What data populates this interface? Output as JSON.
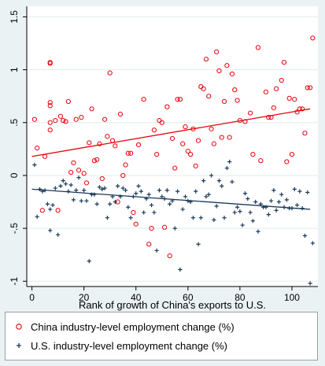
{
  "chart_data": {
    "type": "scatter",
    "title": "",
    "xlabel": "Rank of growth of China's exports to U.S.",
    "ylabel": "",
    "xlim": [
      -2,
      110
    ],
    "ylim": [
      -1.05,
      1.6
    ],
    "xticks": [
      0,
      20,
      40,
      60,
      80,
      100
    ],
    "yticks": [
      -1,
      -0.5,
      0,
      0.5,
      1,
      1.5
    ],
    "xtick_labels": [
      "0",
      "20",
      "40",
      "60",
      "80",
      "100"
    ],
    "ytick_labels": [
      "-1",
      "-.5",
      "0",
      ".5",
      "1",
      "1.5"
    ],
    "grid": true,
    "legend_position": "bottom",
    "series": [
      {
        "name": "China industry-level employment change (%)",
        "color": "#e8000b",
        "marker": "circle",
        "trend": {
          "x0": 0,
          "y0": 0.18,
          "x1": 107,
          "y1": 0.63
        },
        "points": [
          [
            1,
            0.53
          ],
          [
            2,
            0.26
          ],
          [
            4,
            -0.33
          ],
          [
            5,
            0.18
          ],
          [
            7,
            0.5
          ],
          [
            7,
            0.43
          ],
          [
            7,
            0.66
          ],
          [
            7,
            0.69
          ],
          [
            7,
            1.06
          ],
          [
            7,
            1.07
          ],
          [
            9,
            0.52
          ],
          [
            10,
            -0.33
          ],
          [
            11,
            0.56
          ],
          [
            12,
            0.52
          ],
          [
            13,
            0.51
          ],
          [
            14,
            0.7
          ],
          [
            15,
            0.03
          ],
          [
            16,
            0.12
          ],
          [
            17,
            0.53
          ],
          [
            18,
            0.05
          ],
          [
            19,
            0.55
          ],
          [
            20,
            0.02
          ],
          [
            21,
            -0.07
          ],
          [
            22,
            0.31
          ],
          [
            23,
            0.63
          ],
          [
            24,
            0.14
          ],
          [
            25,
            0.15
          ],
          [
            26,
            0.3
          ],
          [
            27,
            -0.03
          ],
          [
            28,
            0.53
          ],
          [
            29,
            0.37
          ],
          [
            30,
            0.97
          ],
          [
            31,
            0.33
          ],
          [
            32,
            0.28
          ],
          [
            33,
            -0.25
          ],
          [
            34,
            0.58
          ],
          [
            35,
            0.0
          ],
          [
            36,
            0.1
          ],
          [
            37,
            0.21
          ],
          [
            38,
            0.21
          ],
          [
            39,
            -0.35
          ],
          [
            40,
            -0.46
          ],
          [
            41,
            0.29
          ],
          [
            43,
            0.72
          ],
          [
            45,
            -0.65
          ],
          [
            46,
            -0.5
          ],
          [
            47,
            0.43
          ],
          [
            48,
            0.2
          ],
          [
            49,
            0.52
          ],
          [
            50,
            0.5
          ],
          [
            51,
            -0.49
          ],
          [
            52,
            0.65
          ],
          [
            53,
            -0.76
          ],
          [
            54,
            0.35
          ],
          [
            55,
            0.07
          ],
          [
            56,
            0.72
          ],
          [
            57,
            0.72
          ],
          [
            58,
            0.3
          ],
          [
            59,
            0.46
          ],
          [
            60,
            0.23
          ],
          [
            61,
            0.2
          ],
          [
            62,
            0.44
          ],
          [
            63,
            0.09
          ],
          [
            64,
            0.33
          ],
          [
            65,
            0.84
          ],
          [
            66,
            0.82
          ],
          [
            67,
            1.1
          ],
          [
            68,
            0.75
          ],
          [
            69,
            0.44
          ],
          [
            70,
            0.3
          ],
          [
            71,
            1.17
          ],
          [
            72,
            0.99
          ],
          [
            73,
            0.36
          ],
          [
            74,
            0.7
          ],
          [
            75,
            1.04
          ],
          [
            76,
            0.36
          ],
          [
            77,
            0.96
          ],
          [
            78,
            0.81
          ],
          [
            79,
            0.71
          ],
          [
            80,
            0.52
          ],
          [
            82,
            0.51
          ],
          [
            84,
            0.59
          ],
          [
            85,
            0.2
          ],
          [
            87,
            1.21
          ],
          [
            88,
            0.14
          ],
          [
            90,
            0.79
          ],
          [
            91,
            0.55
          ],
          [
            92,
            0.55
          ],
          [
            93,
            0.64
          ],
          [
            94,
            0.82
          ],
          [
            96,
            0.9
          ],
          [
            97,
            1.07
          ],
          [
            98,
            0.13
          ],
          [
            99,
            0.73
          ],
          [
            100,
            0.2
          ],
          [
            101,
            0.72
          ],
          [
            102,
            0.6
          ],
          [
            103,
            0.63
          ],
          [
            104,
            0.63
          ],
          [
            105,
            0.4
          ],
          [
            106,
            0.83
          ],
          [
            107,
            0.83
          ],
          [
            108,
            1.3
          ]
        ]
      },
      {
        "name": "U.S. industry-level employment change (%)",
        "color": "#1a3a5a",
        "marker": "plus",
        "trend": {
          "x0": 0,
          "y0": -0.13,
          "x1": 107,
          "y1": -0.32
        },
        "points": [
          [
            1,
            0.1
          ],
          [
            2,
            -0.39
          ],
          [
            3,
            -0.13
          ],
          [
            4,
            -0.15
          ],
          [
            5,
            -0.14
          ],
          [
            6,
            -0.27
          ],
          [
            7,
            -0.32
          ],
          [
            7,
            -0.52
          ],
          [
            8,
            -0.28
          ],
          [
            9,
            -0.12
          ],
          [
            10,
            -0.56
          ],
          [
            11,
            -0.1
          ],
          [
            12,
            -0.05
          ],
          [
            13,
            -0.08
          ],
          [
            14,
            -0.15
          ],
          [
            15,
            -0.09
          ],
          [
            16,
            -0.23
          ],
          [
            17,
            -0.14
          ],
          [
            18,
            -0.02
          ],
          [
            19,
            -0.24
          ],
          [
            20,
            -0.14
          ],
          [
            21,
            -0.24
          ],
          [
            22,
            -0.81
          ],
          [
            23,
            -0.18
          ],
          [
            24,
            -0.18
          ],
          [
            25,
            -0.27
          ],
          [
            26,
            -0.11
          ],
          [
            27,
            -0.13
          ],
          [
            28,
            -0.12
          ],
          [
            29,
            -0.4
          ],
          [
            30,
            -0.27
          ],
          [
            31,
            -0.2
          ],
          [
            32,
            -0.25
          ],
          [
            33,
            -0.1
          ],
          [
            34,
            -0.2
          ],
          [
            35,
            -0.12
          ],
          [
            36,
            -0.14
          ],
          [
            37,
            -0.3
          ],
          [
            38,
            -0.4
          ],
          [
            39,
            -0.2
          ],
          [
            40,
            -0.17
          ],
          [
            41,
            -0.1
          ],
          [
            42,
            -0.15
          ],
          [
            43,
            -0.35
          ],
          [
            44,
            -0.22
          ],
          [
            45,
            -0.18
          ],
          [
            46,
            -0.28
          ],
          [
            47,
            -0.35
          ],
          [
            48,
            -0.71
          ],
          [
            49,
            -0.14
          ],
          [
            50,
            -0.2
          ],
          [
            51,
            -0.22
          ],
          [
            52,
            -0.14
          ],
          [
            53,
            -0.27
          ],
          [
            54,
            -0.24
          ],
          [
            55,
            -0.5
          ],
          [
            56,
            -0.15
          ],
          [
            57,
            -0.89
          ],
          [
            58,
            -0.32
          ],
          [
            59,
            -0.2
          ],
          [
            60,
            -0.24
          ],
          [
            61,
            -0.25
          ],
          [
            62,
            -0.4
          ],
          [
            63,
            -0.15
          ],
          [
            64,
            -0.65
          ],
          [
            65,
            -0.4
          ],
          [
            66,
            -0.05
          ],
          [
            67,
            -0.2
          ],
          [
            68,
            -0.18
          ],
          [
            69,
            0.0
          ],
          [
            70,
            -0.42
          ],
          [
            71,
            -0.29
          ],
          [
            72,
            -0.05
          ],
          [
            73,
            -0.1
          ],
          [
            74,
            -0.4
          ],
          [
            75,
            0.07
          ],
          [
            76,
            0.13
          ],
          [
            77,
            -0.06
          ],
          [
            78,
            -0.35
          ],
          [
            79,
            -0.3
          ],
          [
            80,
            -0.34
          ],
          [
            81,
            -0.47
          ],
          [
            82,
            -0.17
          ],
          [
            83,
            -0.22
          ],
          [
            84,
            -0.35
          ],
          [
            85,
            -0.43
          ],
          [
            86,
            -0.25
          ],
          [
            87,
            -0.53
          ],
          [
            88,
            -0.27
          ],
          [
            89,
            -0.3
          ],
          [
            90,
            -0.3
          ],
          [
            91,
            -0.37
          ],
          [
            92,
            -0.24
          ],
          [
            93,
            -0.14
          ],
          [
            94,
            -0.33
          ],
          [
            95,
            -0.25
          ],
          [
            96,
            -0.18
          ],
          [
            97,
            -0.3
          ],
          [
            98,
            -0.23
          ],
          [
            99,
            -0.31
          ],
          [
            100,
            -0.31
          ],
          [
            101,
            -0.13
          ],
          [
            102,
            -0.28
          ],
          [
            103,
            -0.15
          ],
          [
            104,
            -0.31
          ],
          [
            105,
            -0.57
          ],
          [
            106,
            -0.16
          ],
          [
            107,
            -1.02
          ],
          [
            108,
            -0.64
          ]
        ]
      }
    ]
  }
}
